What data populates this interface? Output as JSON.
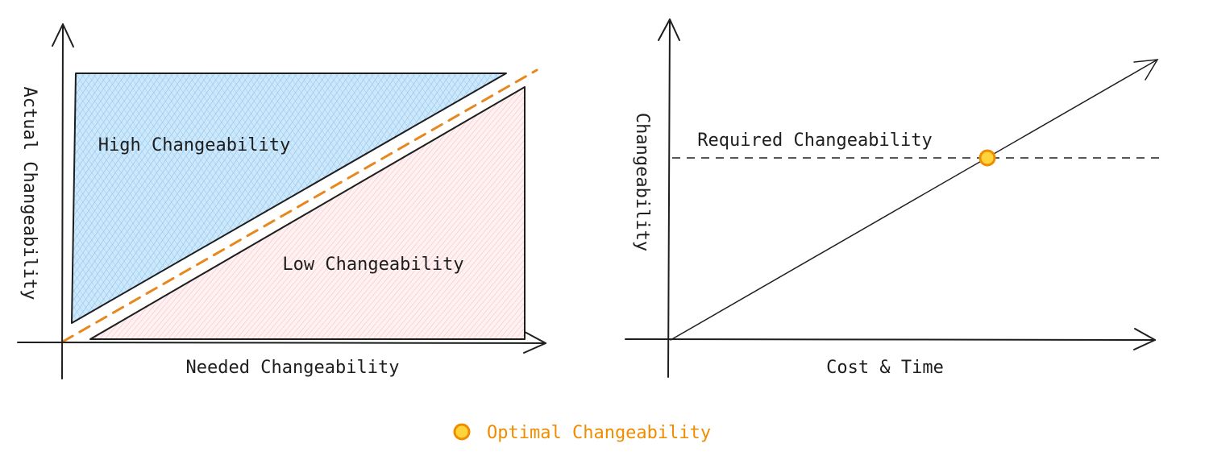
{
  "colors": {
    "ink": "#1e1e1e",
    "high_fill": "#a5d8ff",
    "high_hatch": "#74b7ea",
    "low_fill": "#ffe1e1",
    "low_hatch": "#f2aeb0",
    "optimal": "#f08c00",
    "optimal_fill": "#ffd43b"
  },
  "left_diagram": {
    "y_axis_label": "Actual Changeability",
    "x_axis_label": "Needed Changeability",
    "upper_region_label": "High Changeability",
    "lower_region_label": "Low Changeability"
  },
  "right_diagram": {
    "y_axis_label": "Changeability",
    "x_axis_label": "Cost & Time",
    "threshold_label": "Required Changeability"
  },
  "legend": {
    "marker_icon": "circle-marker",
    "label": "Optimal Changeability"
  }
}
